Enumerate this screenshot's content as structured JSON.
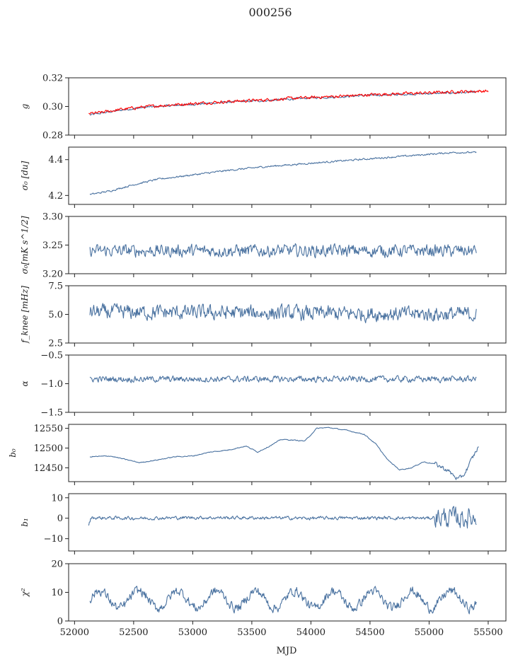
{
  "title": "000256",
  "colors": {
    "main": "#4a72a0",
    "fit": "#ff0000"
  },
  "chart_data": {
    "type": "line",
    "title": "000256",
    "xlabel": "MJD",
    "xlim": [
      51950,
      55650
    ],
    "x_ticks": [
      52000,
      52500,
      53000,
      53500,
      54000,
      54500,
      55000,
      55500
    ],
    "x_tick_labels": [
      "52000",
      "52500",
      "53000",
      "53500",
      "54000",
      "54500",
      "55000",
      "55500"
    ],
    "panels": [
      {
        "key": "g",
        "ylabel": "g",
        "ylim": [
          0.28,
          0.32
        ],
        "yticks": [
          0.28,
          0.3,
          0.32
        ],
        "ytick_labels": [
          "0.28",
          "0.30",
          "0.32"
        ],
        "series": [
          {
            "x": [
              52130,
              52200,
              52400,
              52600,
              52800,
              53000,
              53200,
              53400,
              53600,
              53800,
              54000,
              54200,
              54400,
              54600,
              54800,
              55000,
              55200,
              55400
            ],
            "y": [
              0.294,
              0.295,
              0.2975,
              0.2995,
              0.3005,
              0.3015,
              0.3025,
              0.3035,
              0.304,
              0.305,
              0.306,
              0.3065,
              0.3075,
              0.308,
              0.3085,
              0.309,
              0.3095,
              0.31
            ],
            "noise": 0.0006,
            "color": "main"
          },
          {
            "x": [
              52120,
              52200,
              52400,
              52600,
              52800,
              53000,
              53200,
              53400,
              53600,
              53800,
              54000,
              54200,
              54400,
              54600,
              54800,
              55000,
              55200,
              55500
            ],
            "y": [
              0.295,
              0.2955,
              0.298,
              0.2998,
              0.301,
              0.302,
              0.303,
              0.3038,
              0.3045,
              0.3055,
              0.3062,
              0.307,
              0.3078,
              0.3085,
              0.309,
              0.3095,
              0.3102,
              0.3108
            ],
            "noise": 0.0009,
            "color": "fit"
          }
        ]
      },
      {
        "key": "sigma0_du",
        "ylabel": "σ₀ [du]",
        "ylim": [
          4.15,
          4.47
        ],
        "yticks": [
          4.2,
          4.4
        ],
        "ytick_labels": [
          "4.2",
          "4.4"
        ],
        "series": [
          {
            "x": [
              52130,
              52300,
              52500,
              52700,
              53000,
              53300,
              53600,
              54000,
              54300,
              54600,
              54900,
              55200,
              55400
            ],
            "y": [
              4.205,
              4.225,
              4.26,
              4.29,
              4.315,
              4.34,
              4.36,
              4.38,
              4.395,
              4.41,
              4.425,
              4.44,
              4.44
            ],
            "noise": 0.004,
            "color": "main"
          }
        ]
      },
      {
        "key": "sigma0_mks",
        "ylabel": "σ₀[mK s^1/2]",
        "ylim": [
          3.2,
          3.3
        ],
        "yticks": [
          3.2,
          3.25,
          3.3
        ],
        "ytick_labels": [
          "3.20",
          "3.25",
          "3.30"
        ],
        "series": [
          {
            "x": [
              52130,
              55400
            ],
            "y": [
              3.24,
              3.24
            ],
            "noise": 0.009,
            "color": "main"
          }
        ]
      },
      {
        "key": "fknee",
        "ylabel": "f_knee [mHz]",
        "ylim": [
          2.5,
          7.5
        ],
        "yticks": [
          2.5,
          5.0,
          7.5
        ],
        "ytick_labels": [
          "2.5",
          "5.0",
          "7.5"
        ],
        "series": [
          {
            "x": [
              52130,
              55400
            ],
            "y": [
              5.2,
              5.0
            ],
            "noise": 0.55,
            "color": "main"
          }
        ]
      },
      {
        "key": "alpha",
        "ylabel": "α",
        "ylim": [
          -1.5,
          -0.5
        ],
        "yticks": [
          -1.5,
          -1.0,
          -0.5
        ],
        "ytick_labels": [
          "−1.5",
          "−1.0",
          "−0.5"
        ],
        "series": [
          {
            "x": [
              52130,
              55400
            ],
            "y": [
              -0.92,
              -0.92
            ],
            "noise": 0.045,
            "color": "main"
          }
        ]
      },
      {
        "key": "b0",
        "ylabel": "b₀",
        "ylim": [
          12415,
          12560
        ],
        "yticks": [
          12450,
          12500,
          12550
        ],
        "ytick_labels": [
          "12450",
          "12500",
          "12550"
        ],
        "series": [
          {
            "x": [
              52130,
              52300,
              52450,
              52550,
              52700,
              52850,
              53000,
              53150,
              53300,
              53450,
              53550,
              53650,
              53750,
              53850,
              53950,
              54050,
              54150,
              54300,
              54450,
              54550,
              54650,
              54750,
              54850,
              54950,
              55050,
              55150,
              55250,
              55300,
              55350,
              55420
            ],
            "y": [
              12478,
              12480,
              12470,
              12463,
              12470,
              12478,
              12480,
              12490,
              12495,
              12505,
              12490,
              12505,
              12522,
              12520,
              12518,
              12550,
              12552,
              12545,
              12535,
              12510,
              12470,
              12445,
              12450,
              12465,
              12460,
              12445,
              12420,
              12435,
              12465,
              12505
            ],
            "noise": 1.0,
            "color": "main"
          }
        ]
      },
      {
        "key": "b1",
        "ylabel": "b₁",
        "ylim": [
          -16,
          12
        ],
        "yticks": [
          -10,
          0,
          10
        ],
        "ytick_labels": [
          "−10",
          "0",
          "10"
        ],
        "series": [
          {
            "x": [
              52120,
              52140,
              52600,
              53000,
              53500,
              54000,
              54500,
              55000,
              55050,
              55400
            ],
            "y": [
              -3.5,
              0.2,
              0.0,
              0.3,
              0.2,
              0.0,
              0.2,
              0.0,
              0.5,
              0.0
            ],
            "noise": 0.7,
            "color": "main"
          }
        ]
      },
      {
        "key": "chi2",
        "ylabel": "χ²",
        "ylim": [
          0,
          20
        ],
        "yticks": [
          0,
          10,
          20
        ],
        "ytick_labels": [
          "0",
          "10",
          "20"
        ],
        "series": [
          {
            "x": [
              52130,
              55400
            ],
            "y": [
              7.5,
              7.5
            ],
            "noise": 1.4,
            "color": "main"
          }
        ]
      }
    ]
  }
}
